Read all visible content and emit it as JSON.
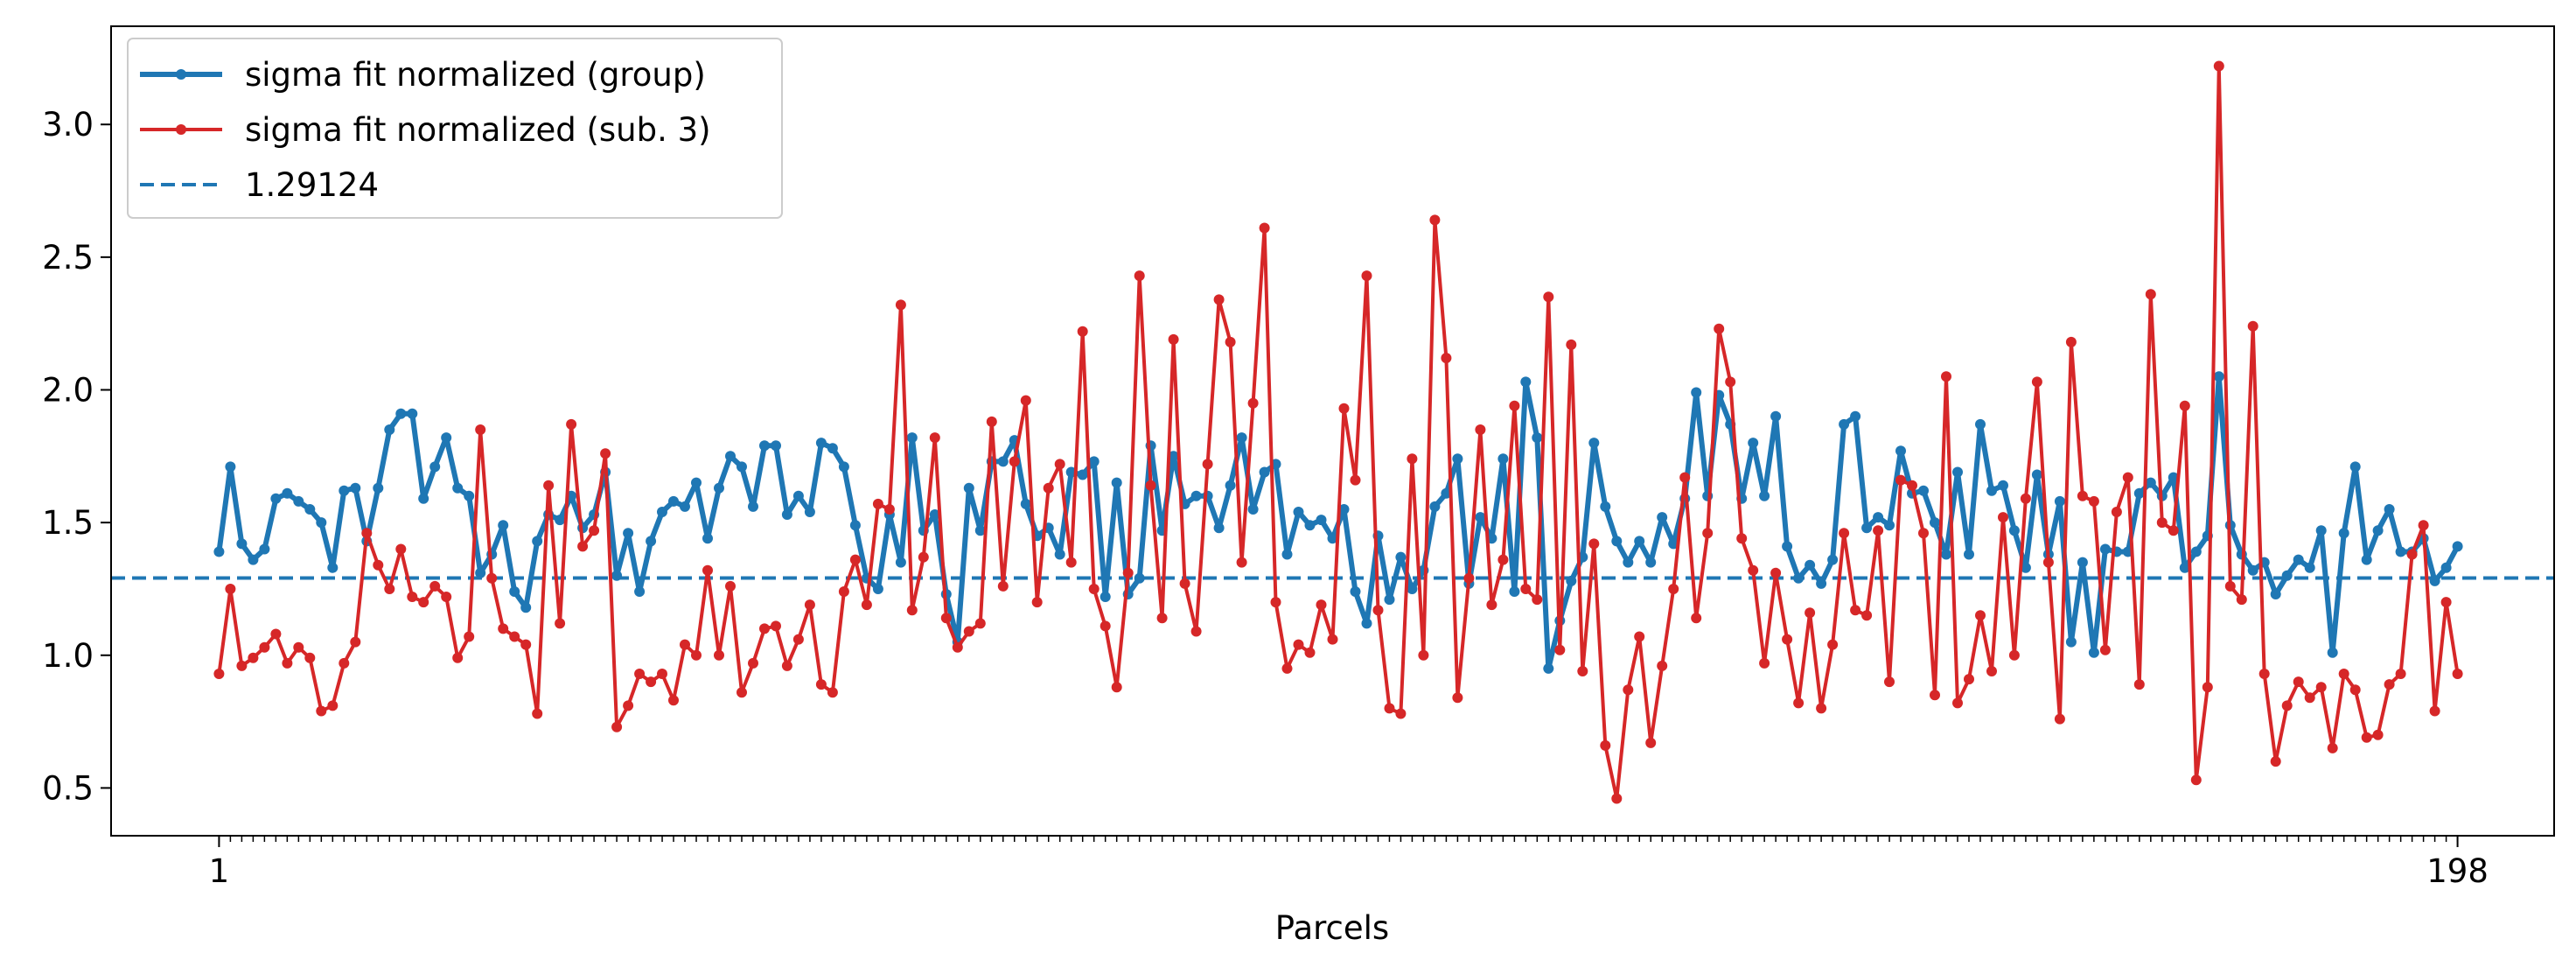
{
  "chart_data": {
    "type": "line",
    "xlabel": "Parcels",
    "xlim": [
      -8.5,
      206.5
    ],
    "ylim": [
      0.32,
      3.37
    ],
    "yticks": [
      0.5,
      1.0,
      1.5,
      2.0,
      2.5,
      3.0
    ],
    "ytick_labels": [
      "0.5",
      "1.0",
      "1.5",
      "2.0",
      "2.5",
      "3.0"
    ],
    "xtick_labels": [
      {
        "x": 1,
        "label": "1"
      },
      {
        "x": 198,
        "label": "198"
      }
    ],
    "minor_xtick_count": 198,
    "legend_position": "top-left",
    "hline": {
      "value": 1.29124,
      "label": "1.29124",
      "color": "#1f77b4",
      "style": "dashed"
    },
    "series": [
      {
        "name": "sigma fit normalized (group)",
        "color": "#1f77b4",
        "x_start": 1,
        "values": [
          1.39,
          1.71,
          1.42,
          1.36,
          1.4,
          1.59,
          1.61,
          1.58,
          1.55,
          1.5,
          1.33,
          1.62,
          1.63,
          1.43,
          1.63,
          1.85,
          1.91,
          1.91,
          1.59,
          1.71,
          1.82,
          1.63,
          1.6,
          1.31,
          1.38,
          1.49,
          1.24,
          1.18,
          1.43,
          1.53,
          1.51,
          1.6,
          1.48,
          1.53,
          1.69,
          1.3,
          1.46,
          1.24,
          1.43,
          1.54,
          1.58,
          1.56,
          1.65,
          1.44,
          1.63,
          1.75,
          1.71,
          1.56,
          1.79,
          1.79,
          1.53,
          1.6,
          1.54,
          1.8,
          1.78,
          1.71,
          1.49,
          1.29,
          1.25,
          1.53,
          1.35,
          1.82,
          1.47,
          1.53,
          1.23,
          1.05,
          1.63,
          1.47,
          1.73,
          1.73,
          1.81,
          1.57,
          1.45,
          1.48,
          1.38,
          1.69,
          1.68,
          1.73,
          1.22,
          1.65,
          1.23,
          1.29,
          1.79,
          1.47,
          1.75,
          1.57,
          1.6,
          1.6,
          1.48,
          1.64,
          1.82,
          1.55,
          1.69,
          1.72,
          1.38,
          1.54,
          1.49,
          1.51,
          1.44,
          1.55,
          1.24,
          1.12,
          1.45,
          1.21,
          1.37,
          1.25,
          1.32,
          1.56,
          1.61,
          1.74,
          1.27,
          1.52,
          1.44,
          1.74,
          1.24,
          2.03,
          1.82,
          0.95,
          1.13,
          1.28,
          1.37,
          1.8,
          1.56,
          1.43,
          1.35,
          1.43,
          1.35,
          1.52,
          1.42,
          1.59,
          1.99,
          1.6,
          1.98,
          1.87,
          1.59,
          1.8,
          1.6,
          1.9,
          1.41,
          1.29,
          1.34,
          1.27,
          1.36,
          1.87,
          1.9,
          1.48,
          1.52,
          1.49,
          1.77,
          1.61,
          1.62,
          1.5,
          1.38,
          1.69,
          1.38,
          1.87,
          1.62,
          1.64,
          1.47,
          1.33,
          1.68,
          1.38,
          1.58,
          1.05,
          1.35,
          1.01,
          1.4,
          1.39,
          1.39,
          1.61,
          1.65,
          1.6,
          1.67,
          1.33,
          1.39,
          1.45,
          2.05,
          1.49,
          1.38,
          1.32,
          1.35,
          1.23,
          1.3,
          1.36,
          1.33,
          1.47,
          1.01,
          1.46,
          1.71,
          1.36,
          1.47,
          1.55,
          1.39,
          1.39,
          1.44,
          1.28,
          1.33,
          1.41
        ]
      },
      {
        "name": "sigma fit normalized (sub. 3)",
        "color": "#d62728",
        "x_start": 1,
        "values": [
          0.93,
          1.25,
          0.96,
          0.99,
          1.03,
          1.08,
          0.97,
          1.03,
          0.99,
          0.79,
          0.81,
          0.97,
          1.05,
          1.46,
          1.34,
          1.25,
          1.4,
          1.22,
          1.2,
          1.26,
          1.22,
          0.99,
          1.07,
          1.85,
          1.29,
          1.1,
          1.07,
          1.04,
          0.78,
          1.64,
          1.12,
          1.87,
          1.41,
          1.47,
          1.76,
          0.73,
          0.81,
          0.93,
          0.9,
          0.93,
          0.83,
          1.04,
          1.0,
          1.32,
          1.0,
          1.26,
          0.86,
          0.97,
          1.1,
          1.11,
          0.96,
          1.06,
          1.19,
          0.89,
          0.86,
          1.24,
          1.36,
          1.19,
          1.57,
          1.55,
          2.32,
          1.17,
          1.37,
          1.82,
          1.14,
          1.03,
          1.09,
          1.12,
          1.88,
          1.26,
          1.73,
          1.96,
          1.2,
          1.63,
          1.72,
          1.35,
          2.22,
          1.25,
          1.11,
          0.88,
          1.31,
          2.43,
          1.64,
          1.14,
          2.19,
          1.27,
          1.09,
          1.72,
          2.34,
          2.18,
          1.35,
          1.95,
          2.61,
          1.2,
          0.95,
          1.04,
          1.01,
          1.19,
          1.06,
          1.93,
          1.66,
          2.43,
          1.17,
          0.8,
          0.78,
          1.74,
          1.0,
          2.64,
          2.12,
          0.84,
          1.29,
          1.85,
          1.19,
          1.36,
          1.94,
          1.25,
          1.21,
          2.35,
          1.02,
          2.17,
          0.94,
          1.42,
          0.66,
          0.46,
          0.87,
          1.07,
          0.67,
          0.96,
          1.25,
          1.67,
          1.14,
          1.46,
          2.23,
          2.03,
          1.44,
          1.32,
          0.97,
          1.31,
          1.06,
          0.82,
          1.16,
          0.8,
          1.04,
          1.46,
          1.17,
          1.15,
          1.47,
          0.9,
          1.66,
          1.64,
          1.46,
          0.85,
          2.05,
          0.82,
          0.91,
          1.15,
          0.94,
          1.52,
          1.0,
          1.59,
          2.03,
          1.35,
          0.76,
          2.18,
          1.6,
          1.58,
          1.02,
          1.54,
          1.67,
          0.89,
          2.36,
          1.5,
          1.47,
          1.94,
          0.53,
          0.88,
          3.22,
          1.26,
          1.21,
          2.24,
          0.93,
          0.6,
          0.81,
          0.9,
          0.84,
          0.88,
          0.65,
          0.93,
          0.87,
          0.69,
          0.7,
          0.89,
          0.93,
          1.38,
          1.49,
          0.79,
          1.2,
          0.93
        ]
      }
    ]
  }
}
